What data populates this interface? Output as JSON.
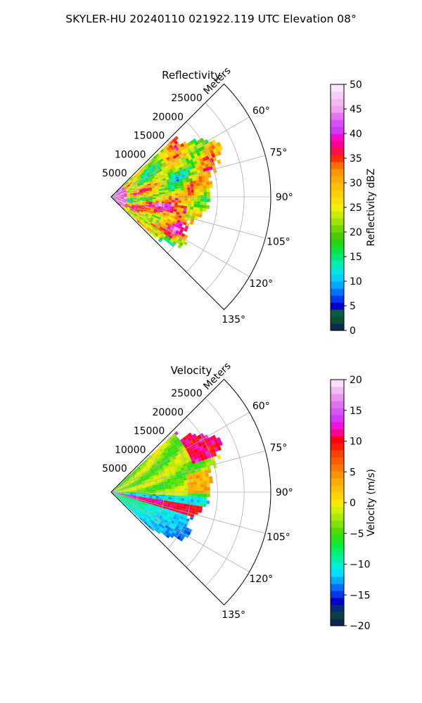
{
  "suptitle": "SKYLER-HU  20240110  021922.119 UTC Elevation 08°",
  "chart_data": [
    {
      "type": "heatmap",
      "subtype": "polar-ppi-sector",
      "title": "Reflectivity",
      "radial_label": "Meters",
      "radial_ticks": [
        "5000",
        "10000",
        "15000",
        "20000",
        "25000"
      ],
      "angle_ticks": [
        "60°",
        "75°",
        "90°",
        "105°",
        "120°",
        "135°"
      ],
      "sector_deg": [
        45,
        135
      ],
      "rlim": [
        0,
        30000
      ],
      "grid": true,
      "colorbar": {
        "label": "Reflectivity dBZ",
        "range": [
          0,
          50
        ],
        "ticks": [
          "0",
          "5",
          "10",
          "15",
          "20",
          "25",
          "30",
          "35",
          "40",
          "45",
          "50"
        ]
      },
      "stops": [
        {
          "v": 0,
          "c": "#0b1a5a"
        },
        {
          "v": 2,
          "c": "#0a4a3a"
        },
        {
          "v": 4,
          "c": "#0a6040"
        },
        {
          "v": 5,
          "c": "#0000c8"
        },
        {
          "v": 7,
          "c": "#0050ff"
        },
        {
          "v": 9,
          "c": "#00a0ff"
        },
        {
          "v": 11,
          "c": "#00d8ff"
        },
        {
          "v": 13,
          "c": "#00f0c8"
        },
        {
          "v": 15,
          "c": "#00e87a"
        },
        {
          "v": 17,
          "c": "#10e020"
        },
        {
          "v": 19,
          "c": "#40c800"
        },
        {
          "v": 21,
          "c": "#7adc00"
        },
        {
          "v": 23,
          "c": "#b8ec00"
        },
        {
          "v": 25,
          "c": "#f0f000"
        },
        {
          "v": 27,
          "c": "#ffd800"
        },
        {
          "v": 30,
          "c": "#ffb800"
        },
        {
          "v": 33,
          "c": "#ff8a00"
        },
        {
          "v": 35,
          "c": "#ff3000"
        },
        {
          "v": 37,
          "c": "#ff0060"
        },
        {
          "v": 39,
          "c": "#ff00c8"
        },
        {
          "v": 41,
          "c": "#cc40ff"
        },
        {
          "v": 43,
          "c": "#e060f0"
        },
        {
          "v": 45,
          "c": "#f0a0f0"
        },
        {
          "v": 48,
          "c": "#f8d0f8"
        },
        {
          "v": 50,
          "c": "#fff0ff"
        }
      ],
      "field_profile": [
        {
          "a": 52,
          "r": 16500
        },
        {
          "a": 56,
          "r": 19000
        },
        {
          "a": 60,
          "r": 21500
        },
        {
          "a": 64,
          "r": 22500
        },
        {
          "a": 68,
          "r": 22000
        },
        {
          "a": 72,
          "r": 21000
        },
        {
          "a": 76,
          "r": 19800
        },
        {
          "a": 80,
          "r": 19000
        },
        {
          "a": 84,
          "r": 18800
        },
        {
          "a": 88,
          "r": 18700
        },
        {
          "a": 92,
          "r": 18900
        },
        {
          "a": 96,
          "r": 18400
        },
        {
          "a": 100,
          "r": 17800
        },
        {
          "a": 104,
          "r": 17000
        },
        {
          "a": 108,
          "r": 15800
        },
        {
          "a": 112,
          "r": 15000
        },
        {
          "a": 116,
          "r": 14500
        },
        {
          "a": 120,
          "r": 16000
        },
        {
          "a": 124,
          "r": 17000
        },
        {
          "a": 128,
          "r": 15000
        },
        {
          "a": 132,
          "r": 12000
        }
      ]
    },
    {
      "type": "heatmap",
      "subtype": "polar-ppi-sector",
      "title": "Velocity",
      "radial_label": "Meters",
      "radial_ticks": [
        "5000",
        "10000",
        "15000",
        "20000",
        "25000"
      ],
      "angle_ticks": [
        "60°",
        "75°",
        "90°",
        "105°",
        "120°",
        "135°"
      ],
      "sector_deg": [
        45,
        135
      ],
      "rlim": [
        0,
        30000
      ],
      "grid": true,
      "colorbar": {
        "label": "Velocity (m/s)",
        "range": [
          -20,
          20
        ],
        "ticks": [
          "−20",
          "−15",
          "−10",
          "−5",
          "0",
          "5",
          "10",
          "15",
          "20"
        ]
      },
      "stops": [
        {
          "v": -20,
          "c": "#0b1a5a"
        },
        {
          "v": -18,
          "c": "#0a4a3a"
        },
        {
          "v": -16,
          "c": "#0000c8"
        },
        {
          "v": -14,
          "c": "#0060ff"
        },
        {
          "v": -12,
          "c": "#00c8ff"
        },
        {
          "v": -11,
          "c": "#00f0ff"
        },
        {
          "v": -9,
          "c": "#00f0a0"
        },
        {
          "v": -7,
          "c": "#00f040"
        },
        {
          "v": -5,
          "c": "#40d800"
        },
        {
          "v": -3,
          "c": "#90e800"
        },
        {
          "v": -1,
          "c": "#d8f000"
        },
        {
          "v": 0,
          "c": "#ffe800"
        },
        {
          "v": 2,
          "c": "#ffc800"
        },
        {
          "v": 4,
          "c": "#ffa000"
        },
        {
          "v": 6,
          "c": "#ff7000"
        },
        {
          "v": 8,
          "c": "#ff4000"
        },
        {
          "v": 10,
          "c": "#ff0000"
        },
        {
          "v": 11,
          "c": "#ff0060"
        },
        {
          "v": 12,
          "c": "#ff00d0"
        },
        {
          "v": 14,
          "c": "#cc40ff"
        },
        {
          "v": 16,
          "c": "#e070f0"
        },
        {
          "v": 18,
          "c": "#f0b0f0"
        },
        {
          "v": 20,
          "c": "#fff0ff"
        }
      ],
      "field_profile": [
        {
          "a": 52,
          "r": 16500
        },
        {
          "a": 56,
          "r": 19500
        },
        {
          "a": 60,
          "r": 21500
        },
        {
          "a": 64,
          "r": 22500
        },
        {
          "a": 68,
          "r": 22000
        },
        {
          "a": 72,
          "r": 21000
        },
        {
          "a": 76,
          "r": 19800
        },
        {
          "a": 80,
          "r": 19000
        },
        {
          "a": 84,
          "r": 18800
        },
        {
          "a": 88,
          "r": 18700
        },
        {
          "a": 92,
          "r": 18900
        },
        {
          "a": 96,
          "r": 18400
        },
        {
          "a": 100,
          "r": 17800
        },
        {
          "a": 104,
          "r": 17000
        },
        {
          "a": 108,
          "r": 15800
        },
        {
          "a": 112,
          "r": 15500
        },
        {
          "a": 116,
          "r": 16000
        },
        {
          "a": 120,
          "r": 16500
        },
        {
          "a": 124,
          "r": 16000
        },
        {
          "a": 128,
          "r": 14000
        },
        {
          "a": 132,
          "r": 11000
        }
      ]
    }
  ]
}
